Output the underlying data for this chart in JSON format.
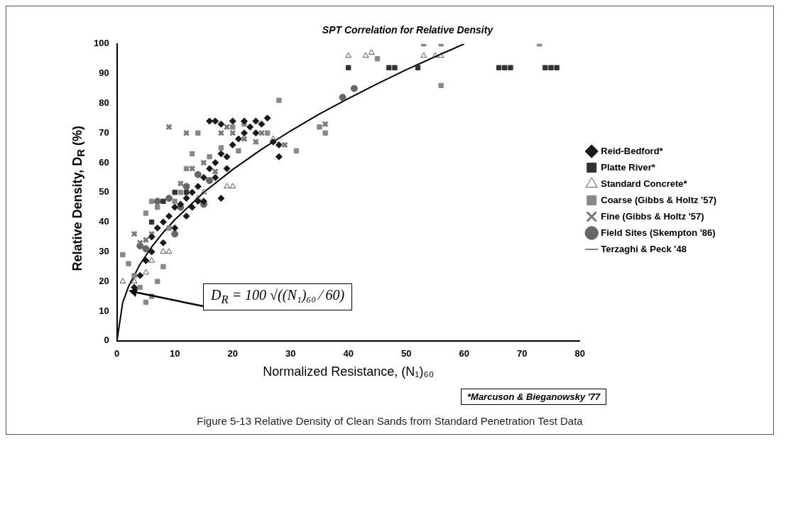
{
  "chart_data": {
    "type": "scatter",
    "title": "SPT Correlation for Relative Density",
    "xlabel": "Normalized Resistance, (N₁)₆₀",
    "ylabel": "Relative Density, D$_{R}$ (%)",
    "xlim": [
      0,
      80
    ],
    "ylim": [
      0,
      100
    ],
    "xticks": [
      0,
      10,
      20,
      30,
      40,
      50,
      60,
      70,
      80
    ],
    "yticks": [
      0,
      10,
      20,
      30,
      40,
      50,
      60,
      70,
      80,
      90,
      100
    ],
    "grid": false,
    "legend": "right",
    "series": [
      {
        "name": "Reid-Bedford*",
        "color": "#1a1a1a",
        "marker": "diamond",
        "x": [
          3,
          4,
          5,
          6,
          6,
          7,
          8,
          9,
          10,
          11,
          12,
          13,
          14,
          15,
          16,
          17,
          18,
          19,
          20,
          21,
          22,
          23,
          24,
          25,
          26,
          16,
          17,
          18,
          20,
          22,
          24,
          27,
          28,
          13,
          14,
          8,
          10,
          12,
          17,
          19,
          28,
          18,
          15
        ],
        "values": [
          18,
          22,
          27,
          30,
          35,
          38,
          40,
          42,
          45,
          46,
          48,
          50,
          52,
          55,
          58,
          60,
          63,
          62,
          66,
          68,
          70,
          72,
          74,
          73,
          75,
          74,
          74,
          73,
          74,
          74,
          70,
          67,
          66,
          45,
          47,
          33,
          38,
          42,
          55,
          58,
          62,
          48,
          47
        ]
      },
      {
        "name": "Platte River*",
        "color": "#333333",
        "marker": "square",
        "x": [
          40,
          47,
          48,
          52,
          66,
          67,
          68,
          74,
          75,
          76,
          12,
          10,
          8,
          6
        ],
        "values": [
          92,
          92,
          92,
          92,
          92,
          92,
          92,
          92,
          92,
          92,
          50,
          50,
          47,
          40
        ]
      },
      {
        "name": "Standard Concrete*",
        "color": "#555555",
        "marker": "triangle",
        "x": [
          40,
          43,
          44,
          53,
          55,
          56,
          1,
          3,
          5,
          6,
          8,
          9,
          14,
          15,
          19,
          20,
          27
        ],
        "values": [
          96,
          96,
          97,
          96,
          96,
          96,
          20,
          20,
          23,
          27,
          30,
          30,
          48,
          50,
          52,
          52,
          68
        ]
      },
      {
        "name": "Coarse (Gibbs & Holtz '57)",
        "color": "#888888",
        "marker": "square",
        "x": [
          1,
          2,
          3,
          4,
          5,
          6,
          7,
          8,
          9,
          10,
          11,
          12,
          13,
          14,
          16,
          18,
          21,
          26,
          28,
          31,
          35,
          36,
          45,
          53,
          56,
          73,
          56,
          20,
          22,
          5,
          6,
          7
        ],
        "values": [
          29,
          26,
          22,
          18,
          13,
          15,
          20,
          25,
          38,
          47,
          50,
          58,
          63,
          70,
          62,
          65,
          64,
          70,
          81,
          64,
          72,
          70,
          95,
          100,
          100,
          100,
          86,
          72,
          73,
          43,
          47,
          45
        ]
      },
      {
        "name": "Fine (Gibbs & Holtz '57)",
        "color": "#777777",
        "marker": "cross",
        "x": [
          9,
          12,
          15,
          17,
          19,
          20,
          22,
          24,
          3,
          4,
          5,
          6,
          11,
          13,
          18,
          25,
          29,
          36
        ],
        "values": [
          72,
          70,
          60,
          57,
          72,
          70,
          68,
          67,
          36,
          33,
          34,
          36,
          53,
          58,
          70,
          70,
          66,
          73
        ]
      },
      {
        "name": "Field Sites (Skempton '86)",
        "color": "#666666",
        "marker": "circle",
        "x": [
          39,
          41,
          4,
          5,
          10,
          11,
          12,
          14,
          15,
          16,
          9,
          7
        ],
        "values": [
          82,
          85,
          32,
          31,
          36,
          45,
          52,
          56,
          46,
          54,
          48,
          47
        ]
      },
      {
        "name": "Terzaghi & Peck '48",
        "type": "line",
        "color": "#000000",
        "marker": "none",
        "line_style": "solid",
        "x": [
          0,
          1,
          2,
          4,
          6,
          8,
          10,
          15,
          20,
          25,
          30,
          35,
          40,
          45,
          50,
          55,
          60
        ],
        "values": [
          0,
          12.9,
          18.3,
          25.8,
          31.6,
          36.5,
          40.8,
          50,
          57.7,
          64.5,
          70.7,
          76.4,
          81.6,
          86.6,
          91.3,
          95.7,
          100
        ]
      }
    ],
    "annotations": [
      "*Marcuson & Bieganowsky '77",
      {
        "text": "D$_{R}$ = 100 √((N₁)₆₀ ⁄ 60)",
        "x": 2,
        "y": 17
      },
      "Figure 5-13  Relative Density of Clean Sands from Standard Penetration Test Data"
    ]
  }
}
